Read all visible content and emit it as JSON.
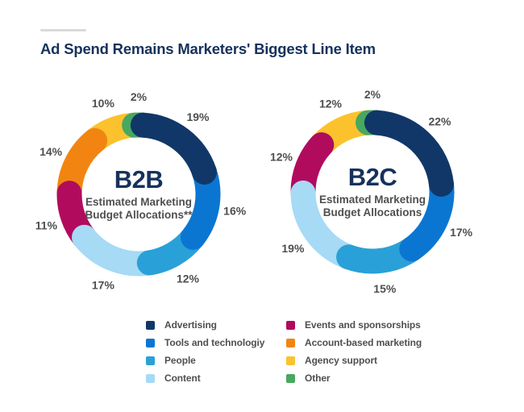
{
  "header": {
    "title": "Ad Spend Remains Marketers' Biggest Line Item"
  },
  "colors": {
    "title": "#16325c",
    "text": "#4f4f4f",
    "dash": "#d9d9d9",
    "palette": {
      "navy": "#113768",
      "blue": "#0b76d2",
      "cyan": "#2aa0d8",
      "lightblue": "#a6daf5",
      "magenta": "#b10b5e",
      "orange": "#f28511",
      "yellow": "#fcc22d",
      "green": "#48a860"
    }
  },
  "chart_data": [
    {
      "type": "donut",
      "center_title": "B2B",
      "subtitle": [
        "Estimated Marketing",
        "Budget Allocations**"
      ],
      "start": "first segment centered at 12 o'clock, clockwise",
      "segments": [
        {
          "label": "Other",
          "value": 2,
          "color": "green"
        },
        {
          "label": "Advertising",
          "value": 19,
          "color": "navy"
        },
        {
          "label": "Tools and technologiy",
          "value": 16,
          "color": "blue"
        },
        {
          "label": "People",
          "value": 12,
          "color": "cyan"
        },
        {
          "label": "Content",
          "value": 17,
          "color": "lightblue"
        },
        {
          "label": "Events and sponsorships",
          "value": 11,
          "color": "magenta"
        },
        {
          "label": "Account-based marketing",
          "value": 14,
          "color": "orange"
        },
        {
          "label": "Agency support",
          "value": 10,
          "color": "yellow"
        }
      ]
    },
    {
      "type": "donut",
      "center_title": "B2C",
      "subtitle": [
        "Estimated Marketing",
        "Budget Allocations"
      ],
      "start": "first segment centered at 12 o'clock, clockwise",
      "segments": [
        {
          "label": "Other",
          "value": 2,
          "color": "green"
        },
        {
          "label": "Advertising",
          "value": 22,
          "color": "navy"
        },
        {
          "label": "Tools and technologiy",
          "value": 17,
          "color": "blue"
        },
        {
          "label": "People",
          "value": 15,
          "color": "cyan"
        },
        {
          "label": "Content",
          "value": 19,
          "color": "lightblue"
        },
        {
          "label": "Events and sponsorships",
          "value": 12,
          "color": "magenta"
        },
        {
          "label": "Agency support",
          "value": 12,
          "color": "yellow"
        }
      ]
    }
  ],
  "legend": {
    "columns": [
      [
        {
          "label": "Advertising",
          "color": "navy"
        },
        {
          "label": "Tools and technologiy",
          "color": "blue"
        },
        {
          "label": "People",
          "color": "cyan"
        },
        {
          "label": "Content",
          "color": "lightblue"
        }
      ],
      [
        {
          "label": "Events and sponsorships",
          "color": "magenta"
        },
        {
          "label": "Account-based marketing",
          "color": "orange"
        },
        {
          "label": "Agency support",
          "color": "yellow"
        },
        {
          "label": "Other",
          "color": "green"
        }
      ]
    ]
  }
}
